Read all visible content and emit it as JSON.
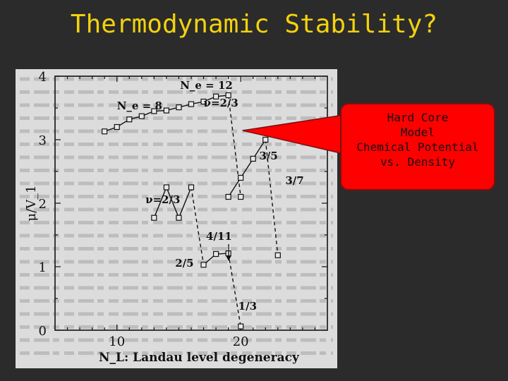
{
  "slide": {
    "title": "Thermodynamic Stability?",
    "callout": {
      "lines": [
        "Hard Core",
        "Model",
        "Chemical Potential",
        "vs. Density"
      ]
    }
  },
  "colors": {
    "title": "#f2d20e",
    "callout_fill": "#ff0000",
    "background": "#2b2b2b"
  },
  "chart_data": {
    "type": "scatter",
    "xlabel": "N_L:  Landau level degeneracy",
    "ylabel": "μ/V_1",
    "xlim": [
      5,
      27
    ],
    "ylim": [
      0,
      4
    ],
    "x_ticks": [
      "10",
      "20"
    ],
    "y_ticks": [
      "0",
      "1",
      "2",
      "3",
      "4"
    ],
    "grid": false,
    "series": [
      {
        "name": "N_e = 8",
        "style": "solid",
        "x": [
          9,
          10,
          11,
          12,
          13,
          14,
          15,
          16,
          17
        ],
        "y": [
          3.13,
          3.2,
          3.32,
          3.37,
          3.45,
          3.46,
          3.51,
          3.56,
          3.6
        ]
      },
      {
        "name": "N_e = 12",
        "style": "solid",
        "x": [
          17,
          18,
          19
        ],
        "y": [
          3.6,
          3.68,
          3.7
        ]
      },
      {
        "name": "",
        "style": "dashed",
        "x": [
          19,
          20
        ],
        "y": [
          3.7,
          2.1
        ]
      },
      {
        "name": "",
        "style": "solid",
        "x": [
          13,
          14,
          15,
          16
        ],
        "y": [
          1.77,
          2.25,
          1.77,
          2.25
        ]
      },
      {
        "name": "",
        "style": "dashed",
        "x": [
          16,
          17
        ],
        "y": [
          2.25,
          1.03
        ]
      },
      {
        "name": "",
        "style": "solid",
        "x": [
          19,
          20,
          21,
          22
        ],
        "y": [
          2.1,
          2.4,
          2.7,
          3.0
        ]
      },
      {
        "name": "",
        "style": "dashed",
        "x": [
          22,
          23
        ],
        "y": [
          3.0,
          1.18
        ]
      },
      {
        "name": "",
        "style": "solid",
        "x": [
          17,
          18,
          19
        ],
        "y": [
          1.03,
          1.2,
          1.21
        ]
      },
      {
        "name": "",
        "style": "dashed",
        "x": [
          19,
          20
        ],
        "y": [
          1.21,
          0.06
        ]
      }
    ],
    "annotations": [
      {
        "text": "N_e = 12",
        "x": 15.1,
        "y": 3.8
      },
      {
        "text": "N_e = 8",
        "x": 10.0,
        "y": 3.48
      },
      {
        "text": "ν=2/3",
        "x": 17.0,
        "y": 3.52
      },
      {
        "text": "3/5",
        "x": 21.5,
        "y": 2.69
      },
      {
        "text": "3/7",
        "x": 23.6,
        "y": 2.3
      },
      {
        "text": "ν=2/3",
        "x": 12.3,
        "y": 2.0
      },
      {
        "text": "4/11",
        "x": 17.2,
        "y": 1.42
      },
      {
        "text": "2/5",
        "x": 14.7,
        "y": 1.0
      },
      {
        "text": "1/3",
        "x": 19.8,
        "y": 0.32
      }
    ]
  }
}
